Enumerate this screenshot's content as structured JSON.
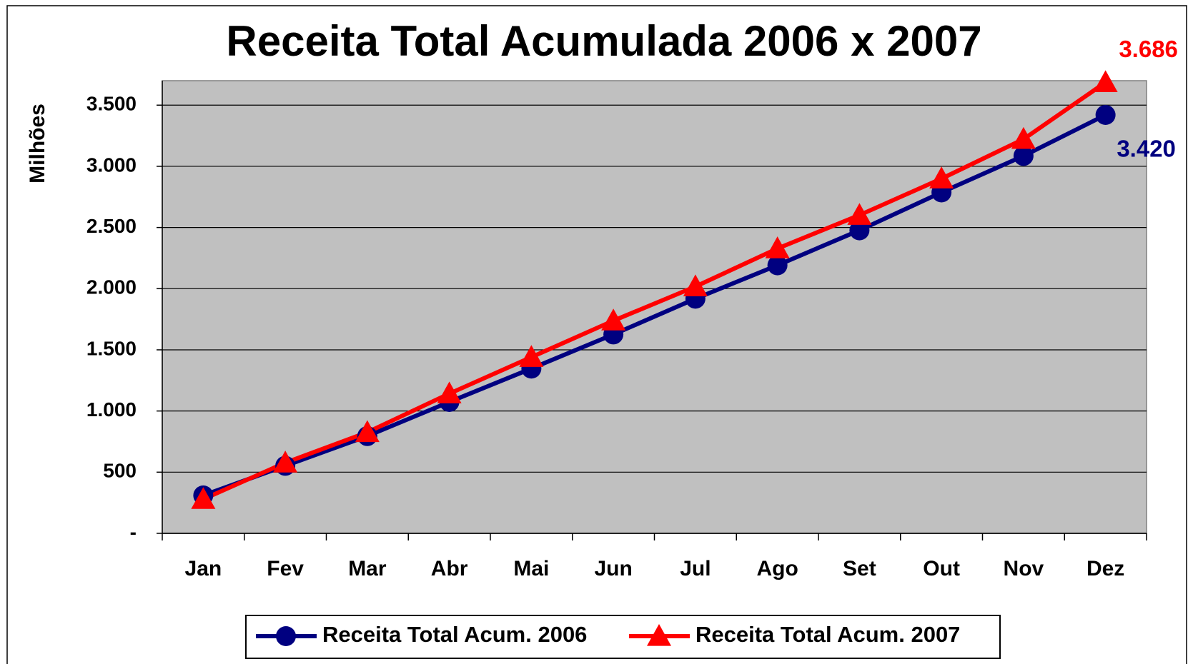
{
  "chart_data": {
    "type": "line",
    "title": "Receita Total Acumulada 2006 x 2007",
    "ylabel": "Milhões",
    "categories": [
      "Jan",
      "Fev",
      "Mar",
      "Abr",
      "Mai",
      "Jun",
      "Jul",
      "Ago",
      "Set",
      "Out",
      "Nov",
      "Dez"
    ],
    "series": [
      {
        "name": "Receita Total Acum. 2006",
        "color": "#000080",
        "marker": "circle",
        "values": [
          310,
          552,
          795,
          1074,
          1347,
          1626,
          1918,
          2191,
          2477,
          2787,
          3085,
          3420
        ],
        "value_labels": [
          null,
          null,
          null,
          null,
          null,
          null,
          null,
          null,
          null,
          null,
          null,
          "3.420"
        ]
      },
      {
        "name": "Receita Total Acum. 2007",
        "color": "#ff0000",
        "marker": "triangle",
        "values": [
          279,
          577,
          826,
          1142,
          1440,
          1738,
          2017,
          2328,
          2601,
          2899,
          3222,
          3686
        ],
        "value_labels": [
          null,
          null,
          null,
          null,
          null,
          null,
          null,
          null,
          null,
          null,
          null,
          "3.686"
        ]
      }
    ],
    "ylim": [
      0,
      3700
    ],
    "yticks": [
      {
        "value": 0,
        "label": "-"
      },
      500,
      {
        "value": 1000,
        "label": "1.000"
      },
      {
        "value": 1500,
        "label": "1.500"
      },
      {
        "value": 2000,
        "label": "2.000"
      },
      {
        "value": 2500,
        "label": "2.500"
      },
      {
        "value": 3000,
        "label": "3.000"
      },
      {
        "value": 3500,
        "label": "3.500"
      }
    ],
    "grid": true,
    "plot_background": "#c0c0c0",
    "legend": "bottom"
  }
}
